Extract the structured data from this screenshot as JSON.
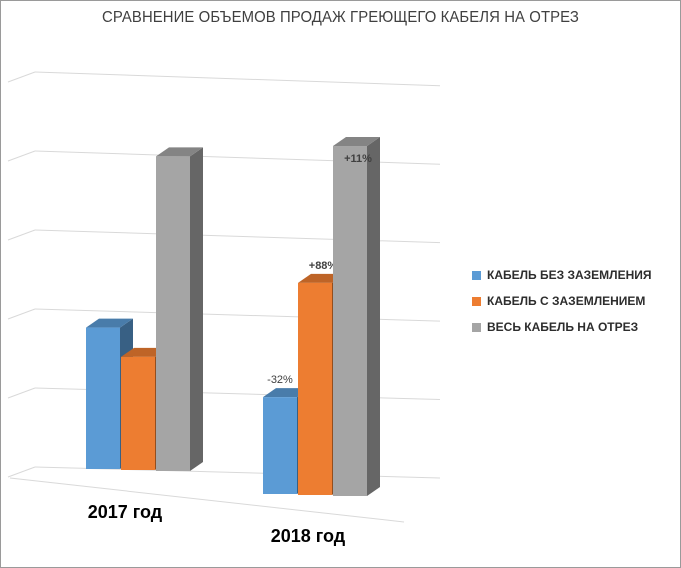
{
  "chart_data": {
    "type": "bar",
    "title": "СРАВНЕНИЕ ОБЪЕМОВ ПРОДАЖ ГРЕЮЩЕГО КАБЕЛЯ НА ОТРЕЗ",
    "categories": [
      "2017 год",
      "2018 год"
    ],
    "series": [
      {
        "name": "КАБЕЛЬ БЕЗ ЗАЗЕМЛЕНИЯ",
        "color": "#5b9bd5",
        "values": [
          2.0,
          1.37
        ],
        "labels": [
          "",
          "-32%"
        ]
      },
      {
        "name": "КАБЕЛЬ С ЗАЗЕМЛЕНИЕМ",
        "color": "#ed7d31",
        "values": [
          1.6,
          3.0
        ],
        "labels": [
          "",
          "+88%"
        ]
      },
      {
        "name": "ВЕСЬ КАБЕЛЬ НА ОТРЕЗ",
        "color": "#a5a5a5",
        "values": [
          4.45,
          4.95
        ],
        "labels": [
          "",
          "+11%"
        ]
      }
    ],
    "ylim": [
      0,
      5
    ],
    "grid": true,
    "legend": "right",
    "projection": "3d-clustered-column"
  }
}
